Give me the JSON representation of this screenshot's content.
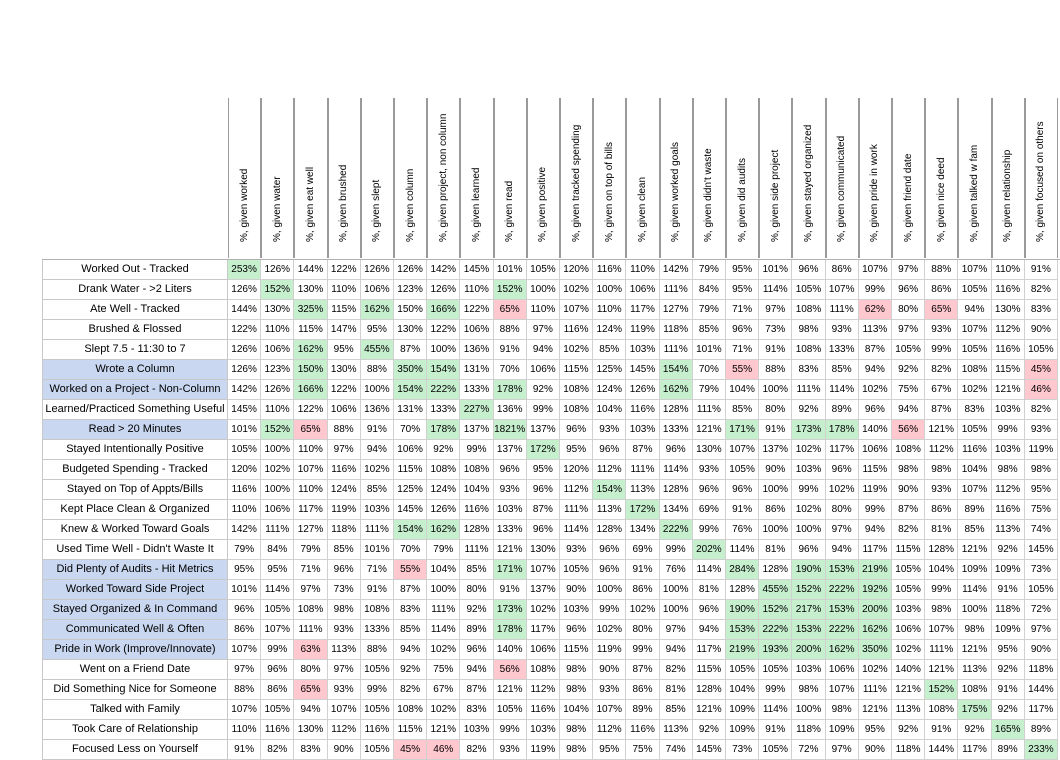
{
  "sheet": {
    "columns": [
      "%, given worked",
      "%, given water",
      "%, given eat well",
      "%, given brushed",
      "%, given slept",
      "%, given column",
      "%, given project, non column",
      "%, given learned",
      "%, given read",
      "%, given positive",
      "%, given tracked spending",
      "%, given on top of bills",
      "%, given clean",
      "%, given worked goals",
      "%, given didn't waste",
      "%, given did audits",
      "%, given side project",
      "%, given stayed organized",
      "%, given communicated",
      "%, given pride in work",
      "%, given friend date",
      "%, given nice deed",
      "%, given talked w fam",
      "%, given relationship",
      "%, given focused on others"
    ],
    "rows": [
      {
        "label": "Worked Out - Tracked",
        "hl": false,
        "values": [
          "253%",
          "126%",
          "144%",
          "122%",
          "126%",
          "126%",
          "142%",
          "145%",
          "101%",
          "105%",
          "120%",
          "116%",
          "110%",
          "142%",
          "79%",
          "95%",
          "101%",
          "96%",
          "86%",
          "107%",
          "97%",
          "88%",
          "107%",
          "110%",
          "91%"
        ],
        "good": [
          0
        ],
        "bad": []
      },
      {
        "label": "Drank Water - >2 Liters",
        "hl": false,
        "values": [
          "126%",
          "152%",
          "130%",
          "110%",
          "106%",
          "123%",
          "126%",
          "110%",
          "152%",
          "100%",
          "102%",
          "100%",
          "106%",
          "111%",
          "84%",
          "95%",
          "114%",
          "105%",
          "107%",
          "99%",
          "96%",
          "86%",
          "105%",
          "116%",
          "82%"
        ],
        "good": [
          1,
          8
        ],
        "bad": []
      },
      {
        "label": "Ate Well - Tracked",
        "hl": false,
        "values": [
          "144%",
          "130%",
          "325%",
          "115%",
          "162%",
          "150%",
          "166%",
          "122%",
          "65%",
          "110%",
          "107%",
          "110%",
          "117%",
          "127%",
          "79%",
          "71%",
          "97%",
          "108%",
          "111%",
          "62%",
          "80%",
          "65%",
          "94%",
          "130%",
          "83%"
        ],
        "good": [
          2,
          4,
          6
        ],
        "bad": [
          8,
          19,
          21
        ]
      },
      {
        "label": "Brushed & Flossed",
        "hl": false,
        "values": [
          "122%",
          "110%",
          "115%",
          "147%",
          "95%",
          "130%",
          "122%",
          "106%",
          "88%",
          "97%",
          "116%",
          "124%",
          "119%",
          "118%",
          "85%",
          "96%",
          "73%",
          "98%",
          "93%",
          "113%",
          "97%",
          "93%",
          "107%",
          "112%",
          "90%"
        ],
        "good": [],
        "bad": []
      },
      {
        "label": "Slept 7.5 - 11:30 to 7",
        "hl": false,
        "values": [
          "126%",
          "106%",
          "162%",
          "95%",
          "455%",
          "87%",
          "100%",
          "136%",
          "91%",
          "94%",
          "102%",
          "85%",
          "103%",
          "111%",
          "101%",
          "71%",
          "91%",
          "108%",
          "133%",
          "87%",
          "105%",
          "99%",
          "105%",
          "116%",
          "105%"
        ],
        "good": [
          2,
          4
        ],
        "bad": []
      },
      {
        "label": "Wrote a Column",
        "hl": true,
        "values": [
          "126%",
          "123%",
          "150%",
          "130%",
          "88%",
          "350%",
          "154%",
          "131%",
          "70%",
          "106%",
          "115%",
          "125%",
          "145%",
          "154%",
          "70%",
          "55%",
          "88%",
          "83%",
          "85%",
          "94%",
          "92%",
          "82%",
          "108%",
          "115%",
          "45%"
        ],
        "good": [
          2,
          5,
          6,
          13
        ],
        "bad": [
          15,
          24
        ]
      },
      {
        "label": "Worked on a Project - Non-Column",
        "hl": true,
        "values": [
          "142%",
          "126%",
          "166%",
          "122%",
          "100%",
          "154%",
          "222%",
          "133%",
          "178%",
          "92%",
          "108%",
          "124%",
          "126%",
          "162%",
          "79%",
          "104%",
          "100%",
          "111%",
          "114%",
          "102%",
          "75%",
          "67%",
          "102%",
          "121%",
          "46%"
        ],
        "good": [
          2,
          5,
          6,
          8,
          13
        ],
        "bad": [
          24
        ]
      },
      {
        "label": "Learned/Practiced Something Useful",
        "hl": false,
        "values": [
          "145%",
          "110%",
          "122%",
          "106%",
          "136%",
          "131%",
          "133%",
          "227%",
          "136%",
          "99%",
          "108%",
          "104%",
          "116%",
          "128%",
          "111%",
          "85%",
          "80%",
          "92%",
          "89%",
          "96%",
          "94%",
          "87%",
          "83%",
          "103%",
          "82%"
        ],
        "good": [
          7
        ],
        "bad": []
      },
      {
        "label": "Read > 20 Minutes",
        "hl": true,
        "values": [
          "101%",
          "152%",
          "65%",
          "88%",
          "91%",
          "70%",
          "178%",
          "137%",
          "1821%",
          "137%",
          "96%",
          "93%",
          "103%",
          "133%",
          "121%",
          "171%",
          "91%",
          "173%",
          "178%",
          "140%",
          "56%",
          "121%",
          "105%",
          "99%",
          "93%"
        ],
        "good": [
          1,
          6,
          8,
          15,
          17,
          18
        ],
        "bad": [
          2,
          20
        ]
      },
      {
        "label": "Stayed Intentionally Positive",
        "hl": false,
        "values": [
          "105%",
          "100%",
          "110%",
          "97%",
          "94%",
          "106%",
          "92%",
          "99%",
          "137%",
          "172%",
          "95%",
          "96%",
          "87%",
          "96%",
          "130%",
          "107%",
          "137%",
          "102%",
          "117%",
          "106%",
          "108%",
          "112%",
          "116%",
          "103%",
          "119%"
        ],
        "good": [
          9
        ],
        "bad": []
      },
      {
        "label": "Budgeted Spending - Tracked",
        "hl": false,
        "values": [
          "120%",
          "102%",
          "107%",
          "116%",
          "102%",
          "115%",
          "108%",
          "108%",
          "96%",
          "95%",
          "120%",
          "112%",
          "111%",
          "114%",
          "93%",
          "105%",
          "90%",
          "103%",
          "96%",
          "115%",
          "98%",
          "98%",
          "104%",
          "98%",
          "98%"
        ],
        "good": [],
        "bad": []
      },
      {
        "label": "Stayed on Top of Appts/Bills",
        "hl": false,
        "values": [
          "116%",
          "100%",
          "110%",
          "124%",
          "85%",
          "125%",
          "124%",
          "104%",
          "93%",
          "96%",
          "112%",
          "154%",
          "113%",
          "128%",
          "96%",
          "96%",
          "100%",
          "99%",
          "102%",
          "119%",
          "90%",
          "93%",
          "107%",
          "112%",
          "95%"
        ],
        "good": [
          11
        ],
        "bad": []
      },
      {
        "label": "Kept Place Clean & Organized",
        "hl": false,
        "values": [
          "110%",
          "106%",
          "117%",
          "119%",
          "103%",
          "145%",
          "126%",
          "116%",
          "103%",
          "87%",
          "111%",
          "113%",
          "172%",
          "134%",
          "69%",
          "91%",
          "86%",
          "102%",
          "80%",
          "99%",
          "87%",
          "86%",
          "89%",
          "116%",
          "75%"
        ],
        "good": [
          12
        ],
        "bad": []
      },
      {
        "label": "Knew & Worked Toward Goals",
        "hl": false,
        "values": [
          "142%",
          "111%",
          "127%",
          "118%",
          "111%",
          "154%",
          "162%",
          "128%",
          "133%",
          "96%",
          "114%",
          "128%",
          "134%",
          "222%",
          "99%",
          "76%",
          "100%",
          "100%",
          "97%",
          "94%",
          "82%",
          "81%",
          "85%",
          "113%",
          "74%"
        ],
        "good": [
          5,
          6,
          13
        ],
        "bad": []
      },
      {
        "label": "Used Time Well - Didn't Waste It",
        "hl": false,
        "values": [
          "79%",
          "84%",
          "79%",
          "85%",
          "101%",
          "70%",
          "79%",
          "111%",
          "121%",
          "130%",
          "93%",
          "96%",
          "69%",
          "99%",
          "202%",
          "114%",
          "81%",
          "96%",
          "94%",
          "117%",
          "115%",
          "128%",
          "121%",
          "92%",
          "145%"
        ],
        "good": [
          14
        ],
        "bad": []
      },
      {
        "label": "Did Plenty of Audits - Hit Metrics",
        "hl": true,
        "values": [
          "95%",
          "95%",
          "71%",
          "96%",
          "71%",
          "55%",
          "104%",
          "85%",
          "171%",
          "107%",
          "105%",
          "96%",
          "91%",
          "76%",
          "114%",
          "284%",
          "128%",
          "190%",
          "153%",
          "219%",
          "105%",
          "104%",
          "109%",
          "109%",
          "73%"
        ],
        "good": [
          8,
          15,
          17,
          18,
          19
        ],
        "bad": [
          5
        ]
      },
      {
        "label": "Worked Toward Side Project",
        "hl": true,
        "values": [
          "101%",
          "114%",
          "97%",
          "73%",
          "91%",
          "87%",
          "100%",
          "80%",
          "91%",
          "137%",
          "90%",
          "100%",
          "86%",
          "100%",
          "81%",
          "128%",
          "455%",
          "152%",
          "222%",
          "192%",
          "105%",
          "99%",
          "114%",
          "91%",
          "105%"
        ],
        "good": [
          16,
          17,
          18,
          19
        ],
        "bad": []
      },
      {
        "label": "Stayed Organized & In Command",
        "hl": true,
        "values": [
          "96%",
          "105%",
          "108%",
          "98%",
          "108%",
          "83%",
          "111%",
          "92%",
          "173%",
          "102%",
          "103%",
          "99%",
          "102%",
          "100%",
          "96%",
          "190%",
          "152%",
          "217%",
          "153%",
          "200%",
          "103%",
          "98%",
          "100%",
          "118%",
          "72%"
        ],
        "good": [
          8,
          15,
          16,
          17,
          18,
          19
        ],
        "bad": []
      },
      {
        "label": "Communicated Well & Often",
        "hl": true,
        "values": [
          "86%",
          "107%",
          "111%",
          "93%",
          "133%",
          "85%",
          "114%",
          "89%",
          "178%",
          "117%",
          "96%",
          "102%",
          "80%",
          "97%",
          "94%",
          "153%",
          "222%",
          "153%",
          "222%",
          "162%",
          "106%",
          "107%",
          "98%",
          "109%",
          "97%"
        ],
        "good": [
          8,
          15,
          16,
          17,
          18,
          19
        ],
        "bad": []
      },
      {
        "label": "Pride in Work (Improve/Innovate)",
        "hl": true,
        "values": [
          "107%",
          "99%",
          "63%",
          "113%",
          "88%",
          "94%",
          "102%",
          "96%",
          "140%",
          "106%",
          "115%",
          "119%",
          "99%",
          "94%",
          "117%",
          "219%",
          "193%",
          "200%",
          "162%",
          "350%",
          "102%",
          "111%",
          "121%",
          "95%",
          "90%"
        ],
        "good": [
          15,
          16,
          17,
          18,
          19
        ],
        "bad": [
          2
        ]
      },
      {
        "label": "Went on a Friend Date",
        "hl": false,
        "values": [
          "97%",
          "96%",
          "80%",
          "97%",
          "105%",
          "92%",
          "75%",
          "94%",
          "56%",
          "108%",
          "98%",
          "90%",
          "87%",
          "82%",
          "115%",
          "105%",
          "105%",
          "103%",
          "106%",
          "102%",
          "140%",
          "121%",
          "113%",
          "92%",
          "118%"
        ],
        "good": [],
        "bad": [
          8
        ]
      },
      {
        "label": "Did Something Nice for Someone",
        "hl": false,
        "values": [
          "88%",
          "86%",
          "65%",
          "93%",
          "99%",
          "82%",
          "67%",
          "87%",
          "121%",
          "112%",
          "98%",
          "93%",
          "86%",
          "81%",
          "128%",
          "104%",
          "99%",
          "98%",
          "107%",
          "111%",
          "121%",
          "152%",
          "108%",
          "91%",
          "144%"
        ],
        "good": [
          21
        ],
        "bad": [
          2
        ]
      },
      {
        "label": "Talked with Family",
        "hl": false,
        "values": [
          "107%",
          "105%",
          "94%",
          "107%",
          "105%",
          "108%",
          "102%",
          "83%",
          "105%",
          "116%",
          "104%",
          "107%",
          "89%",
          "85%",
          "121%",
          "109%",
          "114%",
          "100%",
          "98%",
          "121%",
          "113%",
          "108%",
          "175%",
          "92%",
          "117%"
        ],
        "good": [
          22
        ],
        "bad": []
      },
      {
        "label": "Took Care of Relationship",
        "hl": false,
        "values": [
          "110%",
          "116%",
          "130%",
          "112%",
          "116%",
          "115%",
          "121%",
          "103%",
          "99%",
          "103%",
          "98%",
          "112%",
          "116%",
          "113%",
          "92%",
          "109%",
          "91%",
          "118%",
          "109%",
          "95%",
          "92%",
          "91%",
          "92%",
          "165%",
          "89%"
        ],
        "good": [
          23
        ],
        "bad": []
      },
      {
        "label": "Focused Less on Yourself",
        "hl": false,
        "values": [
          "91%",
          "82%",
          "83%",
          "90%",
          "105%",
          "45%",
          "46%",
          "82%",
          "93%",
          "119%",
          "98%",
          "95%",
          "75%",
          "74%",
          "145%",
          "73%",
          "105%",
          "72%",
          "97%",
          "90%",
          "118%",
          "144%",
          "117%",
          "89%",
          "233%"
        ],
        "good": [
          24
        ],
        "bad": [
          5,
          6
        ]
      }
    ]
  }
}
